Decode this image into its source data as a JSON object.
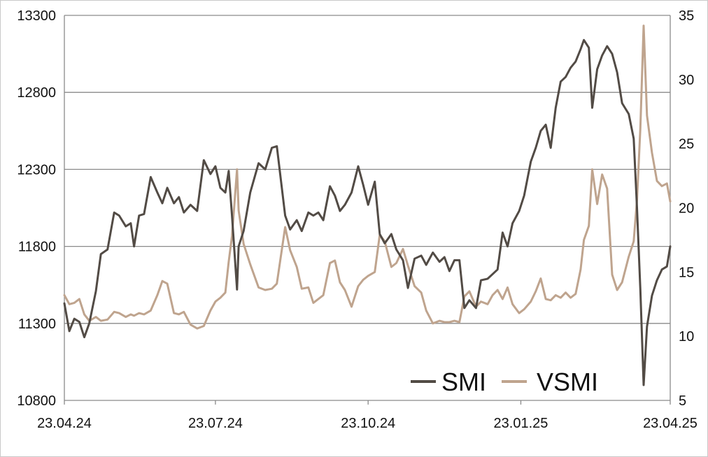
{
  "chart_data": {
    "type": "line",
    "title": "",
    "xlabel": "",
    "ylabel": "",
    "x_tick_labels": [
      "23.04.24",
      "23.07.24",
      "23.10.24",
      "23.01.25",
      "23.04.25"
    ],
    "x_range": [
      "23.04.24",
      "23.04.25"
    ],
    "y_left": {
      "min": 10800,
      "max": 13300,
      "ticks": [
        10800,
        11300,
        11800,
        12300,
        12800,
        13300
      ]
    },
    "y_right": {
      "min": 5,
      "max": 35,
      "ticks": [
        5,
        10,
        15,
        20,
        25,
        30,
        35
      ]
    },
    "grid": "horizontal",
    "legend_position": "bottom-right",
    "series": [
      {
        "name": "SMI",
        "axis": "left",
        "color": "#524b45",
        "points": [
          [
            "23.04.24",
            11430
          ],
          [
            "26.04.24",
            11250
          ],
          [
            "29.04.24",
            11330
          ],
          [
            "02.05.24",
            11310
          ],
          [
            "05.05.24",
            11210
          ],
          [
            "08.05.24",
            11300
          ],
          [
            "12.05.24",
            11510
          ],
          [
            "15.05.24",
            11750
          ],
          [
            "19.05.24",
            11780
          ],
          [
            "23.05.24",
            12020
          ],
          [
            "26.05.24",
            12000
          ],
          [
            "30.05.24",
            11930
          ],
          [
            "02.06.24",
            11950
          ],
          [
            "04.06.24",
            11800
          ],
          [
            "07.06.24",
            12000
          ],
          [
            "10.06.24",
            12010
          ],
          [
            "14.06.24",
            12250
          ],
          [
            "18.06.24",
            12150
          ],
          [
            "21.06.24",
            12080
          ],
          [
            "24.06.24",
            12180
          ],
          [
            "28.06.24",
            12080
          ],
          [
            "01.07.24",
            12120
          ],
          [
            "04.07.24",
            12020
          ],
          [
            "08.07.24",
            12070
          ],
          [
            "12.07.24",
            12030
          ],
          [
            "16.07.24",
            12360
          ],
          [
            "20.07.24",
            12270
          ],
          [
            "23.07.24",
            12320
          ],
          [
            "26.07.24",
            12180
          ],
          [
            "29.07.24",
            12150
          ],
          [
            "31.07.24",
            12290
          ],
          [
            "02.08.24",
            12000
          ],
          [
            "05.08.24",
            11520
          ],
          [
            "06.08.24",
            11800
          ],
          [
            "09.08.24",
            11900
          ],
          [
            "13.08.24",
            12150
          ],
          [
            "18.08.24",
            12340
          ],
          [
            "22.08.24",
            12300
          ],
          [
            "26.08.24",
            12440
          ],
          [
            "29.08.24",
            12450
          ],
          [
            "03.09.24",
            12000
          ],
          [
            "06.09.24",
            11910
          ],
          [
            "10.09.24",
            11970
          ],
          [
            "13.09.24",
            11900
          ],
          [
            "17.09.24",
            12020
          ],
          [
            "20.09.24",
            12000
          ],
          [
            "23.09.24",
            12020
          ],
          [
            "26.09.24",
            11970
          ],
          [
            "30.09.24",
            12190
          ],
          [
            "03.10.24",
            12130
          ],
          [
            "06.10.24",
            12030
          ],
          [
            "09.10.24",
            12070
          ],
          [
            "13.10.24",
            12150
          ],
          [
            "17.10.24",
            12320
          ],
          [
            "20.10.24",
            12200
          ],
          [
            "23.10.24",
            12070
          ],
          [
            "27.10.24",
            12220
          ],
          [
            "30.10.24",
            11880
          ],
          [
            "02.11.24",
            11820
          ],
          [
            "06.11.24",
            11880
          ],
          [
            "09.11.24",
            11780
          ],
          [
            "13.11.24",
            11710
          ],
          [
            "16.11.24",
            11530
          ],
          [
            "20.11.24",
            11720
          ],
          [
            "24.11.24",
            11740
          ],
          [
            "27.11.24",
            11680
          ],
          [
            "01.12.24",
            11760
          ],
          [
            "05.12.24",
            11700
          ],
          [
            "08.12.24",
            11730
          ],
          [
            "11.12.24",
            11640
          ],
          [
            "14.12.24",
            11710
          ],
          [
            "17.12.24",
            11710
          ],
          [
            "20.12.24",
            11400
          ],
          [
            "23.12.24",
            11450
          ],
          [
            "27.12.24",
            11400
          ],
          [
            "30.12.24",
            11580
          ],
          [
            "03.01.25",
            11590
          ],
          [
            "06.01.25",
            11620
          ],
          [
            "09.01.25",
            11650
          ],
          [
            "12.01.25",
            11890
          ],
          [
            "15.01.25",
            11800
          ],
          [
            "18.01.25",
            11950
          ],
          [
            "22.01.25",
            12030
          ],
          [
            "25.01.25",
            12130
          ],
          [
            "29.01.25",
            12350
          ],
          [
            "01.02.25",
            12440
          ],
          [
            "04.02.25",
            12550
          ],
          [
            "07.02.25",
            12590
          ],
          [
            "10.02.25",
            12440
          ],
          [
            "13.02.25",
            12700
          ],
          [
            "16.02.25",
            12870
          ],
          [
            "19.02.25",
            12900
          ],
          [
            "22.02.25",
            12960
          ],
          [
            "25.02.25",
            13000
          ],
          [
            "28.02.25",
            13080
          ],
          [
            "02.03.25",
            13140
          ],
          [
            "05.03.25",
            13090
          ],
          [
            "07.03.25",
            12700
          ],
          [
            "10.03.25",
            12950
          ],
          [
            "13.03.25",
            13040
          ],
          [
            "16.03.25",
            13100
          ],
          [
            "19.03.25",
            13050
          ],
          [
            "22.03.25",
            12930
          ],
          [
            "25.03.25",
            12730
          ],
          [
            "29.03.25",
            12660
          ],
          [
            "01.04.25",
            12500
          ],
          [
            "03.04.25",
            12050
          ],
          [
            "05.04.25",
            11520
          ],
          [
            "07.04.25",
            10900
          ],
          [
            "09.04.25",
            11280
          ],
          [
            "12.04.25",
            11480
          ],
          [
            "15.04.25",
            11580
          ],
          [
            "18.04.25",
            11650
          ],
          [
            "21.04.25",
            11670
          ],
          [
            "23.04.25",
            11800
          ]
        ]
      },
      {
        "name": "VSMI",
        "axis": "right",
        "color": "#bfa48e",
        "points": [
          [
            "23.04.24",
            13.2
          ],
          [
            "26.04.24",
            12.5
          ],
          [
            "29.04.24",
            12.6
          ],
          [
            "02.05.24",
            12.9
          ],
          [
            "05.05.24",
            11.7
          ],
          [
            "08.05.24",
            11.2
          ],
          [
            "12.05.24",
            11.5
          ],
          [
            "15.05.24",
            11.2
          ],
          [
            "19.05.24",
            11.3
          ],
          [
            "23.05.24",
            11.9
          ],
          [
            "26.05.24",
            11.8
          ],
          [
            "30.05.24",
            11.5
          ],
          [
            "02.06.24",
            11.7
          ],
          [
            "04.06.24",
            11.6
          ],
          [
            "07.06.24",
            11.8
          ],
          [
            "10.06.24",
            11.7
          ],
          [
            "14.06.24",
            12.0
          ],
          [
            "18.06.24",
            13.2
          ],
          [
            "21.06.24",
            14.3
          ],
          [
            "24.06.24",
            14.1
          ],
          [
            "28.06.24",
            11.8
          ],
          [
            "01.07.24",
            11.7
          ],
          [
            "04.07.24",
            11.9
          ],
          [
            "08.07.24",
            10.9
          ],
          [
            "12.07.24",
            10.6
          ],
          [
            "16.07.24",
            10.8
          ],
          [
            "20.07.24",
            12.0
          ],
          [
            "23.07.24",
            12.7
          ],
          [
            "26.07.24",
            13.0
          ],
          [
            "29.07.24",
            13.4
          ],
          [
            "31.07.24",
            15.8
          ],
          [
            "02.08.24",
            17.8
          ],
          [
            "05.08.24",
            23.0
          ],
          [
            "06.08.24",
            19.8
          ],
          [
            "09.08.24",
            17.2
          ],
          [
            "13.08.24",
            15.6
          ],
          [
            "18.08.24",
            13.8
          ],
          [
            "22.08.24",
            13.6
          ],
          [
            "26.08.24",
            13.7
          ],
          [
            "29.08.24",
            14.1
          ],
          [
            "03.09.24",
            18.5
          ],
          [
            "06.09.24",
            16.7
          ],
          [
            "10.09.24",
            15.4
          ],
          [
            "13.09.24",
            13.7
          ],
          [
            "17.09.24",
            13.8
          ],
          [
            "20.09.24",
            12.6
          ],
          [
            "23.09.24",
            12.9
          ],
          [
            "26.09.24",
            13.2
          ],
          [
            "30.09.24",
            15.7
          ],
          [
            "03.10.24",
            15.9
          ],
          [
            "06.10.24",
            14.2
          ],
          [
            "09.10.24",
            13.6
          ],
          [
            "13.10.24",
            12.3
          ],
          [
            "17.10.24",
            13.9
          ],
          [
            "20.10.24",
            14.4
          ],
          [
            "23.10.24",
            14.7
          ],
          [
            "27.10.24",
            15.0
          ],
          [
            "30.10.24",
            17.9
          ],
          [
            "02.11.24",
            17.4
          ],
          [
            "06.11.24",
            15.4
          ],
          [
            "09.11.24",
            15.7
          ],
          [
            "13.11.24",
            16.8
          ],
          [
            "16.11.24",
            15.5
          ],
          [
            "20.11.24",
            13.9
          ],
          [
            "24.11.24",
            13.4
          ],
          [
            "27.11.24",
            12.0
          ],
          [
            "01.12.24",
            11.0
          ],
          [
            "05.12.24",
            11.2
          ],
          [
            "08.12.24",
            11.1
          ],
          [
            "11.12.24",
            11.1
          ],
          [
            "14.12.24",
            11.2
          ],
          [
            "17.12.24",
            11.1
          ],
          [
            "20.12.24",
            13.1
          ],
          [
            "23.12.24",
            13.5
          ],
          [
            "27.12.24",
            12.3
          ],
          [
            "30.12.24",
            12.7
          ],
          [
            "03.01.25",
            12.5
          ],
          [
            "06.01.25",
            13.2
          ],
          [
            "09.01.25",
            13.6
          ],
          [
            "12.01.25",
            12.9
          ],
          [
            "15.01.25",
            13.8
          ],
          [
            "18.01.25",
            12.5
          ],
          [
            "22.01.25",
            11.8
          ],
          [
            "25.01.25",
            12.1
          ],
          [
            "29.01.25",
            12.7
          ],
          [
            "01.02.25",
            13.5
          ],
          [
            "04.02.25",
            14.5
          ],
          [
            "07.02.25",
            12.9
          ],
          [
            "10.02.25",
            12.8
          ],
          [
            "13.02.25",
            13.2
          ],
          [
            "16.02.25",
            13.0
          ],
          [
            "19.02.25",
            13.4
          ],
          [
            "22.02.25",
            13.0
          ],
          [
            "25.02.25",
            13.3
          ],
          [
            "28.02.25",
            15.2
          ],
          [
            "02.03.25",
            17.5
          ],
          [
            "05.03.25",
            18.6
          ],
          [
            "07.03.25",
            23.0
          ],
          [
            "10.03.25",
            20.3
          ],
          [
            "13.03.25",
            22.6
          ],
          [
            "16.03.25",
            21.5
          ],
          [
            "19.03.25",
            14.8
          ],
          [
            "22.03.25",
            13.6
          ],
          [
            "25.03.25",
            14.2
          ],
          [
            "29.03.25",
            16.2
          ],
          [
            "01.04.25",
            17.4
          ],
          [
            "03.04.25",
            20.6
          ],
          [
            "05.04.25",
            26.2
          ],
          [
            "07.04.25",
            34.2
          ],
          [
            "09.04.25",
            27.2
          ],
          [
            "12.04.25",
            24.3
          ],
          [
            "15.04.25",
            22.1
          ],
          [
            "18.04.25",
            21.7
          ],
          [
            "21.04.25",
            21.9
          ],
          [
            "23.04.25",
            20.5
          ]
        ]
      }
    ]
  }
}
